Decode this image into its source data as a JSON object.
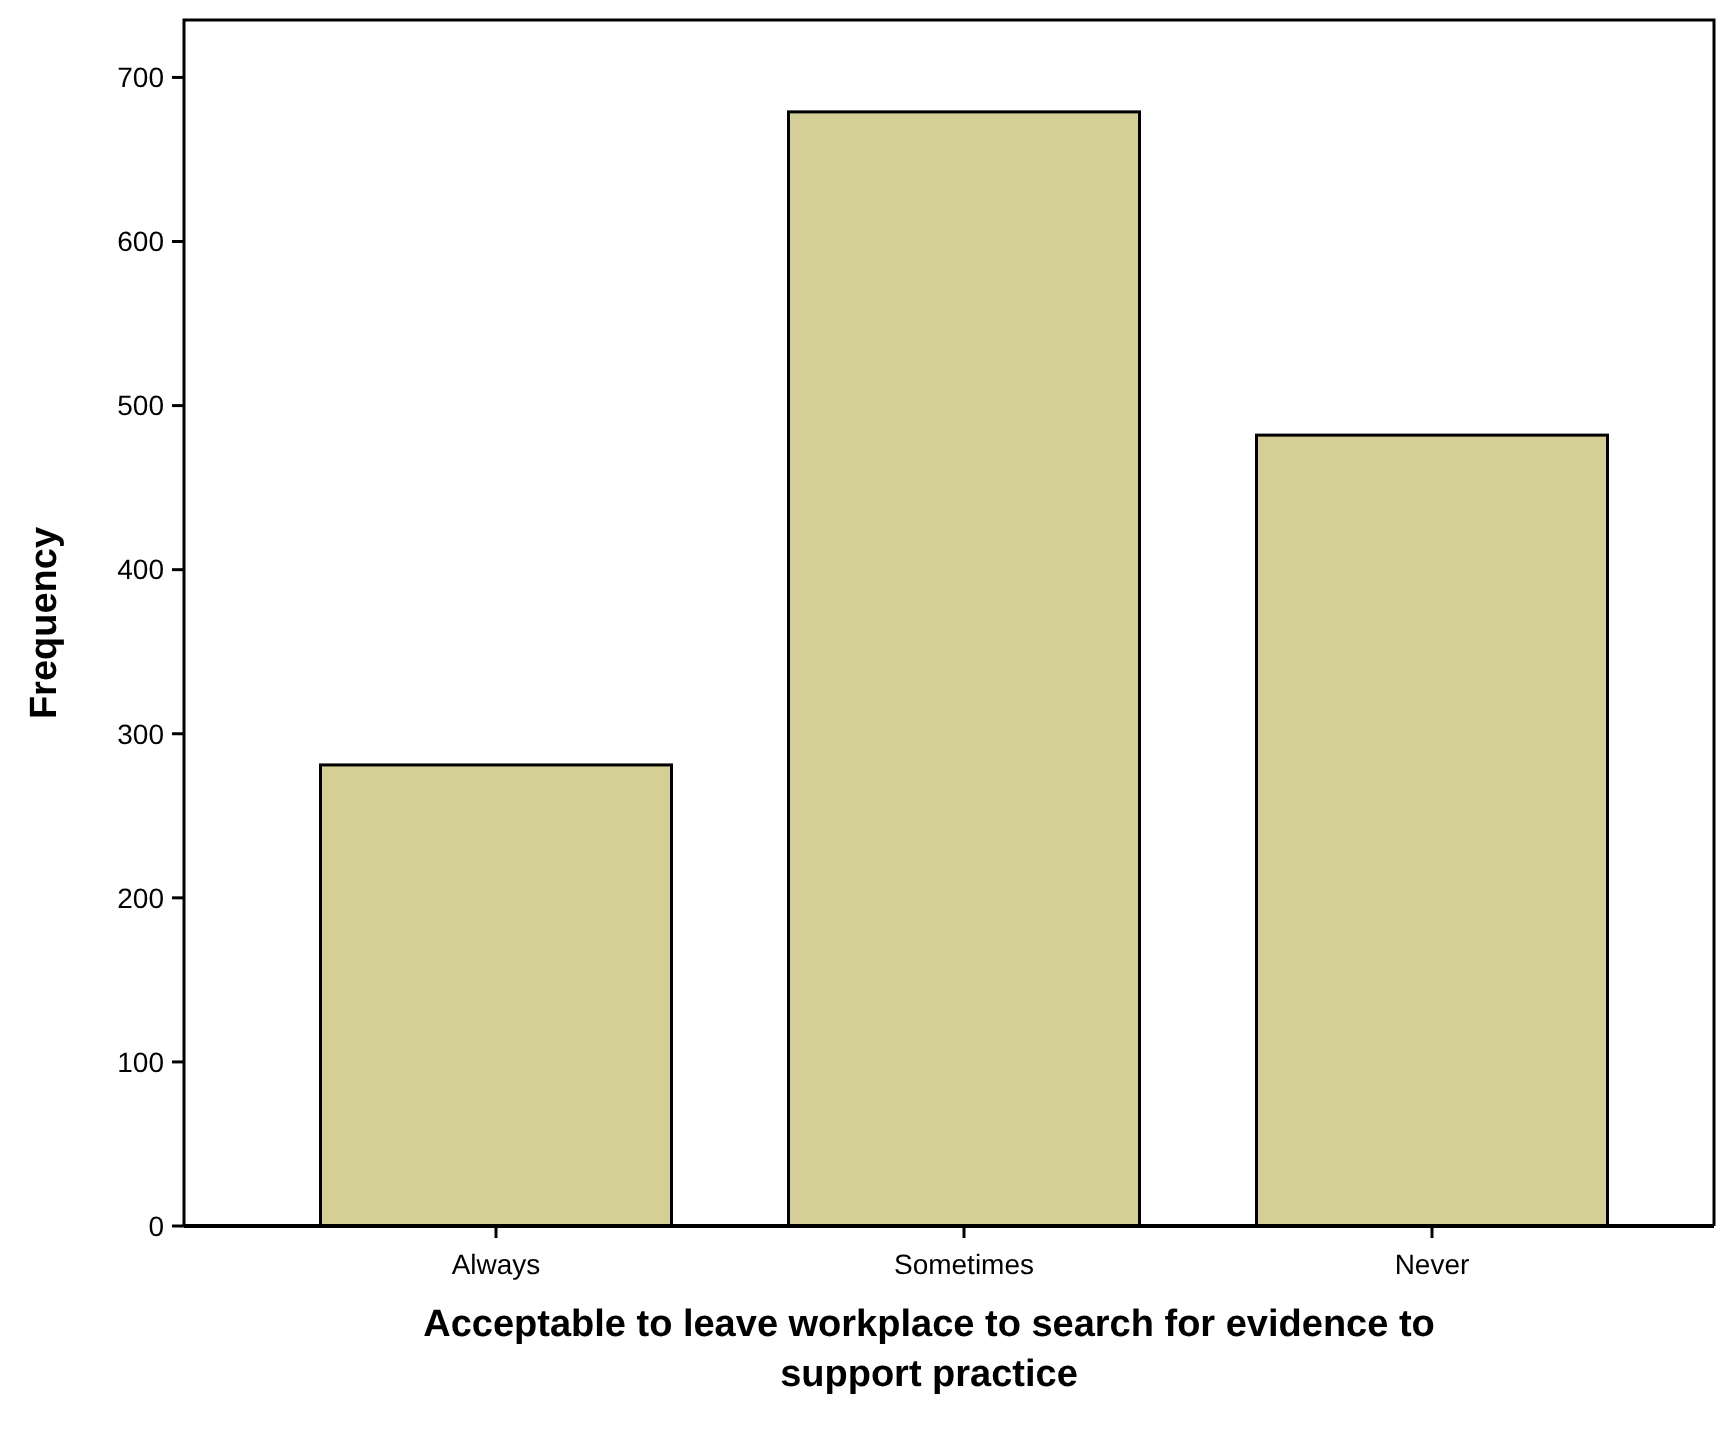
{
  "chart_data": {
    "type": "bar",
    "xlabel": "Acceptable to leave workplace to search for evidence to support practice",
    "ylabel": "Frequency",
    "categories": [
      "Always",
      "Sometimes",
      "Never"
    ],
    "values": [
      281,
      679,
      482
    ],
    "color": "#d3cf96",
    "ylim": [
      0,
      735
    ],
    "yticks": [
      0,
      100,
      200,
      300,
      400,
      500,
      600,
      700
    ],
    "grid": false
  }
}
